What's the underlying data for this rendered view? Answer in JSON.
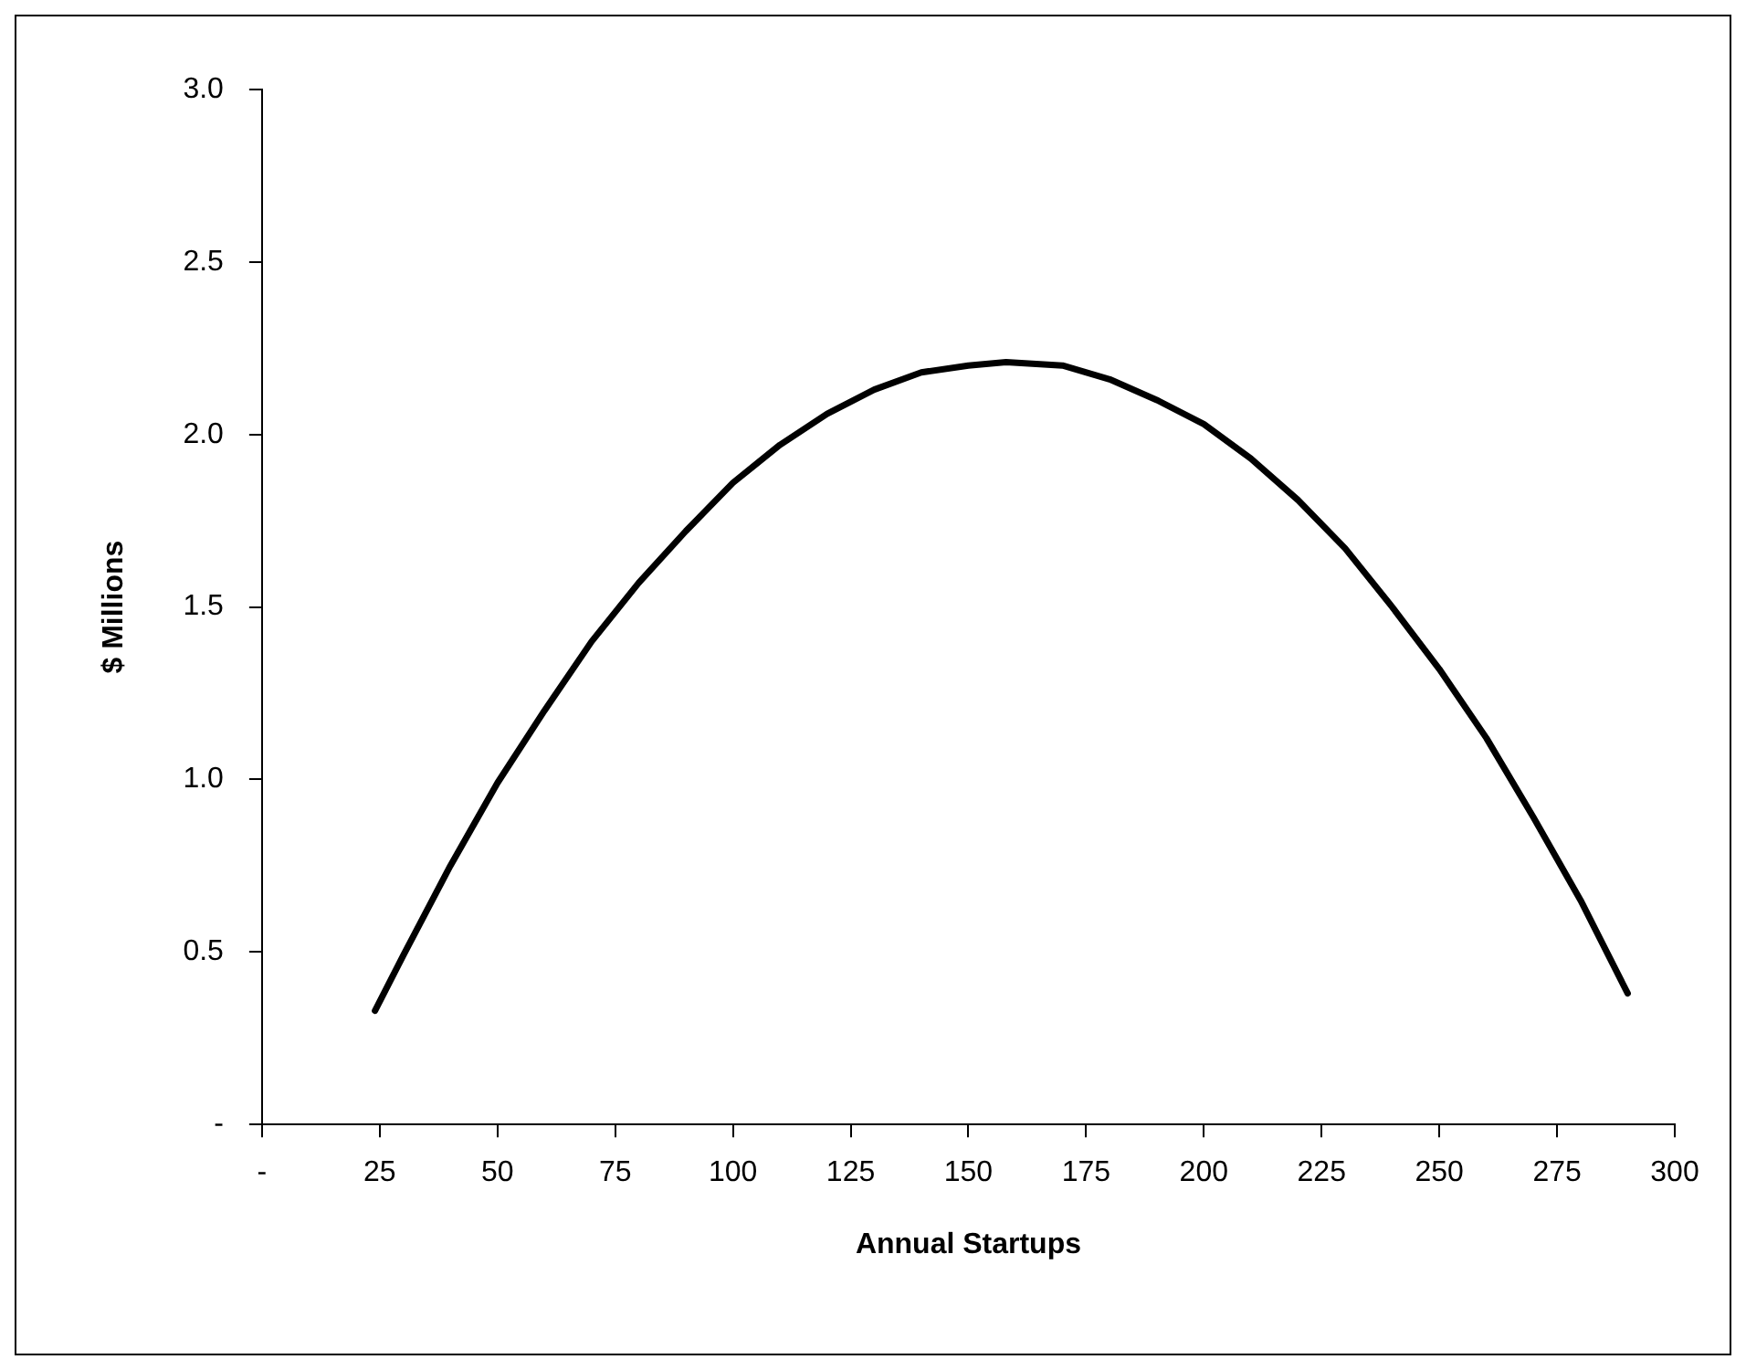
{
  "chart_data": {
    "type": "line",
    "xlabel": "Annual Startups",
    "ylabel": "$ Millions",
    "x": [
      24,
      30,
      40,
      50,
      60,
      70,
      80,
      90,
      100,
      110,
      120,
      130,
      140,
      150,
      158,
      170,
      180,
      190,
      200,
      210,
      220,
      230,
      240,
      250,
      260,
      270,
      280,
      290
    ],
    "series": [
      {
        "color": "#000000",
        "values": [
          0.33,
          0.49,
          0.75,
          0.99,
          1.2,
          1.4,
          1.57,
          1.72,
          1.86,
          1.97,
          2.06,
          2.13,
          2.18,
          2.2,
          2.21,
          2.2,
          2.16,
          2.1,
          2.03,
          1.93,
          1.81,
          1.67,
          1.5,
          1.32,
          1.12,
          0.89,
          0.65,
          0.38
        ]
      }
    ],
    "xlim": [
      0,
      300
    ],
    "xticks": [
      {
        "value": 0,
        "label": "-"
      },
      25,
      50,
      75,
      100,
      125,
      150,
      175,
      200,
      225,
      250,
      275,
      300
    ],
    "ylim": [
      0,
      3
    ],
    "yticks": [
      {
        "value": 0,
        "label": "-"
      },
      0.5,
      {
        "value": 1,
        "label": "1.0"
      },
      1.5,
      {
        "value": 2,
        "label": "2.0"
      },
      2.5,
      {
        "value": 3,
        "label": "3.0"
      }
    ],
    "legend": false,
    "marker": "none",
    "line_style": "solid"
  }
}
